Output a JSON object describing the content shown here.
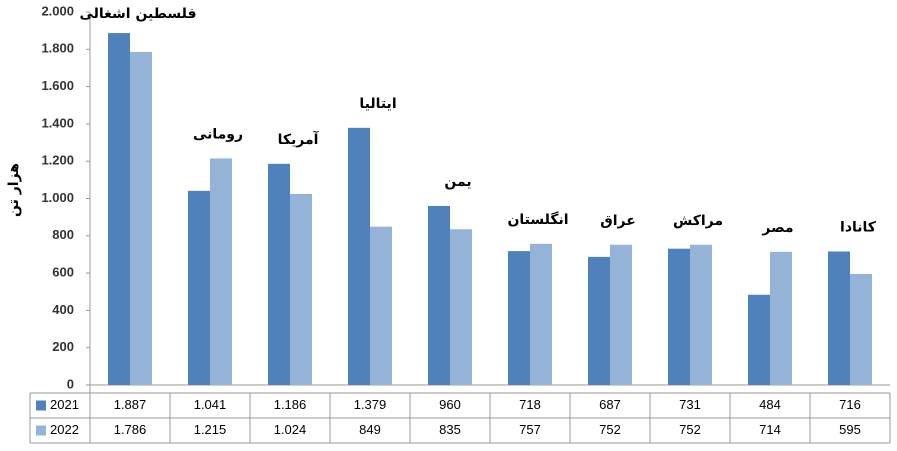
{
  "chart_data": {
    "type": "bar",
    "y_label": "هزار تن",
    "categories": [
      "فلسطين اشغالی",
      "رومانی",
      "آمریکا",
      "ایتالیا",
      "یمن",
      "انگلستان",
      "عراق",
      "مراکش",
      "مصر",
      "کانادا"
    ],
    "series": [
      {
        "name": "2021",
        "color": "#4f81bd",
        "values": [
          1887,
          1041,
          1186,
          1379,
          960,
          718,
          687,
          731,
          484,
          716
        ],
        "value_labels": [
          "1.887",
          "1.041",
          "1.186",
          "1.379",
          "960",
          "718",
          "687",
          "731",
          "484",
          "716"
        ]
      },
      {
        "name": "2022",
        "color": "#95b3d7",
        "values": [
          1786,
          1215,
          1024,
          849,
          835,
          757,
          752,
          752,
          714,
          595
        ],
        "value_labels": [
          "1.786",
          "1.215",
          "1.024",
          "849",
          "835",
          "757",
          "752",
          "752",
          "714",
          "595"
        ]
      }
    ],
    "ylim": [
      0,
      2000
    ],
    "yticks": [
      0,
      200,
      400,
      600,
      800,
      {
        "value": 1000,
        "label": "1.000"
      },
      {
        "value": 1200,
        "label": "1.200"
      },
      {
        "value": 1400,
        "label": "1.400"
      },
      {
        "value": 1600,
        "label": "1.600"
      },
      {
        "value": 1800,
        "label": "1.800"
      },
      {
        "value": 2000,
        "label": "2.000"
      }
    ],
    "grid": false
  }
}
